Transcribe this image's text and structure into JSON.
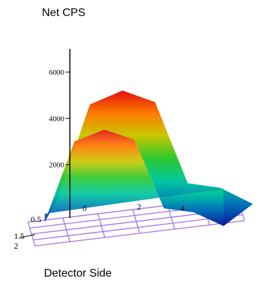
{
  "chart_data": {
    "type": "surface3d",
    "title": "Net CPS",
    "xlabel": "Detector Side",
    "zlim": [
      0,
      7000
    ],
    "z_ticks": [
      "6000",
      "4000",
      "2000"
    ],
    "axis_tick_labels": [
      "0.5",
      "0",
      "2",
      "4",
      "1.5",
      "2"
    ],
    "x": [
      0,
      1,
      2,
      3,
      4,
      5,
      6
    ],
    "values": [
      500,
      4600,
      5200,
      4700,
      1200,
      1000,
      300
    ],
    "colormap": [
      "#0a1a9a",
      "#0074b8",
      "#00c8a0",
      "#2ec82e",
      "#c8c800",
      "#ff7a00",
      "#e01010"
    ],
    "floor_grid_color": "#a070e0"
  }
}
